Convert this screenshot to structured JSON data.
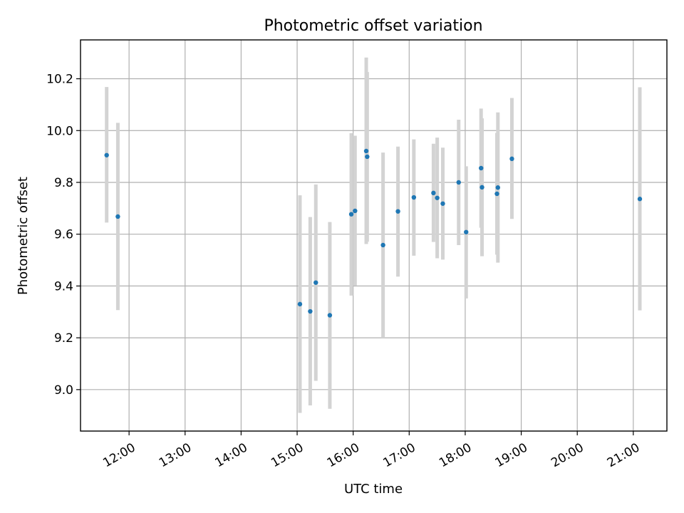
{
  "chart_data": {
    "type": "scatter",
    "title": "Photometric offset variation",
    "xlabel": "UTC time",
    "ylabel": "Photometric offset",
    "xlim": [
      "11:08",
      "21:36"
    ],
    "ylim": [
      8.84,
      10.35
    ],
    "x_ticks": [
      "12:00",
      "13:00",
      "14:00",
      "15:00",
      "16:00",
      "17:00",
      "18:00",
      "19:00",
      "20:00",
      "21:00"
    ],
    "y_ticks": [
      9.0,
      9.2,
      9.4,
      9.6,
      9.8,
      10.0,
      10.2
    ],
    "y_tick_labels": [
      "9.0",
      "9.2",
      "9.4",
      "9.6",
      "9.8",
      "10.0",
      "10.2"
    ],
    "grid": true,
    "colors": {
      "point": "#1f77b4",
      "errorbar": "#d3d3d3",
      "grid": "#b0b0b0"
    },
    "series": [
      {
        "points": [
          {
            "x": "11:36",
            "y": 9.905,
            "err_low": 9.645,
            "err_high": 10.168
          },
          {
            "x": "11:48",
            "y": 9.668,
            "err_low": 9.307,
            "err_high": 10.03
          },
          {
            "x": "15:03",
            "y": 9.33,
            "err_low": 8.91,
            "err_high": 9.75
          },
          {
            "x": "15:14",
            "y": 9.302,
            "err_low": 8.939,
            "err_high": 9.666
          },
          {
            "x": "15:20",
            "y": 9.413,
            "err_low": 9.034,
            "err_high": 9.792
          },
          {
            "x": "15:35",
            "y": 9.287,
            "err_low": 8.926,
            "err_high": 9.647
          },
          {
            "x": "15:58",
            "y": 9.677,
            "err_low": 9.363,
            "err_high": 9.99
          },
          {
            "x": "16:02",
            "y": 9.69,
            "err_low": 9.401,
            "err_high": 9.98
          },
          {
            "x": "16:14",
            "y": 9.921,
            "err_low": 9.562,
            "err_high": 10.282
          },
          {
            "x": "16:15",
            "y": 9.899,
            "err_low": 9.571,
            "err_high": 10.226
          },
          {
            "x": "16:32",
            "y": 9.558,
            "err_low": 9.2,
            "err_high": 9.915
          },
          {
            "x": "16:48",
            "y": 9.688,
            "err_low": 9.436,
            "err_high": 9.938
          },
          {
            "x": "17:05",
            "y": 9.742,
            "err_low": 9.517,
            "err_high": 9.966
          },
          {
            "x": "17:26",
            "y": 9.759,
            "err_low": 9.57,
            "err_high": 9.949
          },
          {
            "x": "17:30",
            "y": 9.74,
            "err_low": 9.507,
            "err_high": 9.973
          },
          {
            "x": "17:36",
            "y": 9.718,
            "err_low": 9.502,
            "err_high": 9.934
          },
          {
            "x": "17:53",
            "y": 9.8,
            "err_low": 9.558,
            "err_high": 10.042
          },
          {
            "x": "18:01",
            "y": 9.608,
            "err_low": 9.352,
            "err_high": 9.862
          },
          {
            "x": "18:17",
            "y": 9.855,
            "err_low": 9.625,
            "err_high": 10.085
          },
          {
            "x": "18:18",
            "y": 9.781,
            "err_low": 9.515,
            "err_high": 10.047
          },
          {
            "x": "18:34",
            "y": 9.756,
            "err_low": 9.521,
            "err_high": 9.991
          },
          {
            "x": "18:35",
            "y": 9.78,
            "err_low": 9.49,
            "err_high": 10.07
          },
          {
            "x": "18:50",
            "y": 9.891,
            "err_low": 9.659,
            "err_high": 10.126
          },
          {
            "x": "21:07",
            "y": 9.736,
            "err_low": 9.306,
            "err_high": 10.167
          }
        ]
      }
    ]
  }
}
